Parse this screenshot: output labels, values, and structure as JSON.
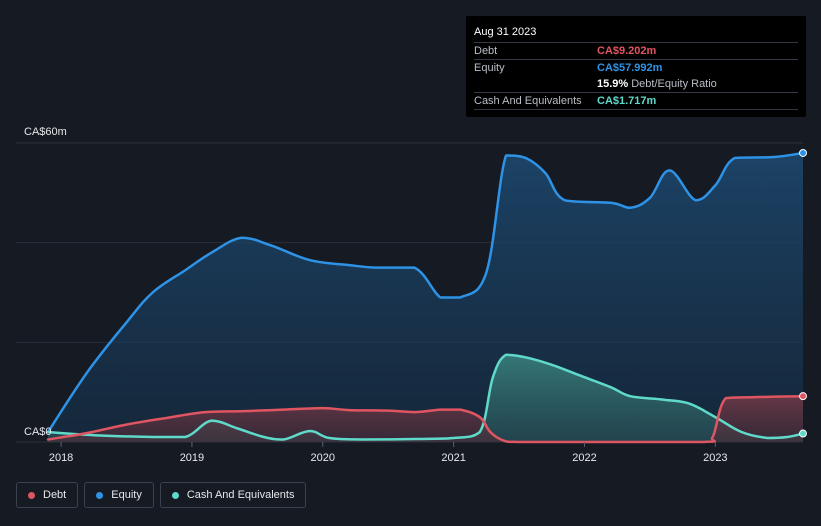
{
  "tooltip": {
    "date": "Aug 31 2023",
    "debt_label": "Debt",
    "debt_value": "CA$9.202m",
    "equity_label": "Equity",
    "equity_value": "CA$57.992m",
    "ratio_pct": "15.9%",
    "ratio_text": "Debt/Equity Ratio",
    "cash_label": "Cash And Equivalents",
    "cash_value": "CA$1.717m"
  },
  "legend": [
    {
      "label": "Debt",
      "color": "#e05562"
    },
    {
      "label": "Equity",
      "color": "#2e93e6"
    },
    {
      "label": "Cash And Equivalents",
      "color": "#5fd9c9"
    }
  ],
  "chart_data": {
    "type": "area",
    "ylabel_top": "CA$60m",
    "ylabel_bottom": "CA$0",
    "ylim": [
      0,
      60
    ],
    "xlim": [
      2017.9,
      2023.67
    ],
    "x_ticks": [
      {
        "label": "2018",
        "x": 2018
      },
      {
        "label": "2019",
        "x": 2019
      },
      {
        "label": "2020",
        "x": 2020
      },
      {
        "label": "2021",
        "x": 2021
      },
      {
        "label": "2022",
        "x": 2022
      },
      {
        "label": "2023",
        "x": 2023
      }
    ],
    "colors": {
      "debt": "#e05562",
      "equity": "#2e93e6",
      "cash": "#5fd9c9"
    },
    "series": [
      {
        "name": "Equity",
        "points": [
          [
            2017.9,
            2
          ],
          [
            2018.2,
            14
          ],
          [
            2018.5,
            24
          ],
          [
            2018.7,
            30
          ],
          [
            2018.95,
            34.5
          ],
          [
            2019.15,
            38
          ],
          [
            2019.38,
            41
          ],
          [
            2019.6,
            39.5
          ],
          [
            2019.9,
            36.5
          ],
          [
            2020.2,
            35.5
          ],
          [
            2020.4,
            35
          ],
          [
            2020.7,
            35
          ],
          [
            2020.9,
            29
          ],
          [
            2021.05,
            29
          ],
          [
            2021.25,
            34
          ],
          [
            2021.4,
            57.5
          ],
          [
            2021.55,
            57
          ],
          [
            2021.7,
            54
          ],
          [
            2021.85,
            48.5
          ],
          [
            2022.2,
            48
          ],
          [
            2022.35,
            47
          ],
          [
            2022.5,
            49
          ],
          [
            2022.65,
            54.5
          ],
          [
            2022.85,
            48.5
          ],
          [
            2023.0,
            51.5
          ],
          [
            2023.15,
            57
          ],
          [
            2023.45,
            57.2
          ],
          [
            2023.67,
            58
          ]
        ]
      },
      {
        "name": "Cash And Equivalents",
        "points": [
          [
            2017.9,
            2
          ],
          [
            2018.3,
            1.3
          ],
          [
            2018.7,
            1
          ],
          [
            2018.95,
            1
          ],
          [
            2019.15,
            4.3
          ],
          [
            2019.35,
            2.7
          ],
          [
            2019.55,
            1
          ],
          [
            2019.7,
            0.5
          ],
          [
            2019.9,
            2.2
          ],
          [
            2020.05,
            0.8
          ],
          [
            2020.3,
            0.5
          ],
          [
            2020.7,
            0.6
          ],
          [
            2021.0,
            0.8
          ],
          [
            2021.2,
            2
          ],
          [
            2021.3,
            13
          ],
          [
            2021.4,
            17.5
          ],
          [
            2021.55,
            17
          ],
          [
            2021.75,
            15.5
          ],
          [
            2021.95,
            13.5
          ],
          [
            2022.2,
            11
          ],
          [
            2022.35,
            9.2
          ],
          [
            2022.6,
            8.5
          ],
          [
            2022.8,
            7.7
          ],
          [
            2023.0,
            5
          ],
          [
            2023.2,
            2
          ],
          [
            2023.4,
            0.8
          ],
          [
            2023.55,
            1
          ],
          [
            2023.67,
            1.7
          ]
        ]
      },
      {
        "name": "Debt",
        "points": [
          [
            2017.9,
            0.5
          ],
          [
            2018.2,
            1.8
          ],
          [
            2018.5,
            3.5
          ],
          [
            2018.8,
            4.8
          ],
          [
            2019.1,
            6
          ],
          [
            2019.4,
            6.2
          ],
          [
            2019.7,
            6.5
          ],
          [
            2020.0,
            6.8
          ],
          [
            2020.2,
            6.4
          ],
          [
            2020.5,
            6.3
          ],
          [
            2020.7,
            6
          ],
          [
            2020.9,
            6.5
          ],
          [
            2021.05,
            6.5
          ],
          [
            2021.2,
            5
          ],
          [
            2021.28,
            2
          ],
          [
            2021.38,
            0.3
          ],
          [
            2021.5,
            0
          ],
          [
            2022.0,
            0
          ],
          [
            2022.9,
            0
          ],
          [
            2022.98,
            1
          ],
          [
            2023.08,
            8.8
          ],
          [
            2023.3,
            9
          ],
          [
            2023.67,
            9.2
          ]
        ]
      }
    ]
  }
}
